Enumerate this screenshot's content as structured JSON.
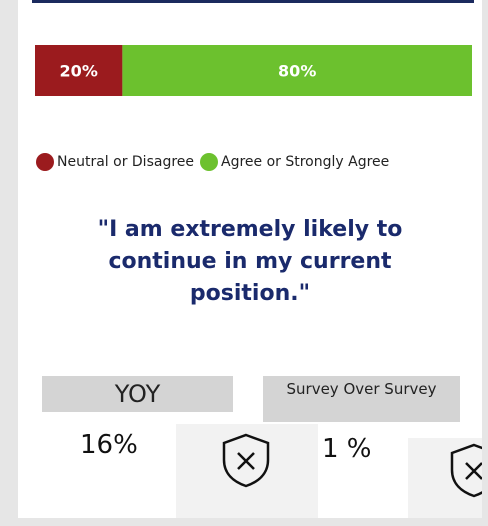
{
  "chart_data": {
    "type": "stacked-bar-horizontal",
    "xlim": [
      0,
      100
    ],
    "series": [
      {
        "name": "Neutral or Disagree",
        "color": "#9b1b1e",
        "values": [
          20
        ],
        "value_labels": [
          "20%"
        ]
      },
      {
        "name": "Agree or Strongly Agree",
        "color": "#6cc12e",
        "values": [
          80
        ],
        "value_labels": [
          "80%"
        ]
      }
    ]
  },
  "question": "\"I am extremely likely to continue in my current position.\"",
  "kpis": [
    {
      "label": "YOY",
      "value": "16%"
    },
    {
      "label": "Survey Over Survey",
      "value": "1 %"
    }
  ]
}
